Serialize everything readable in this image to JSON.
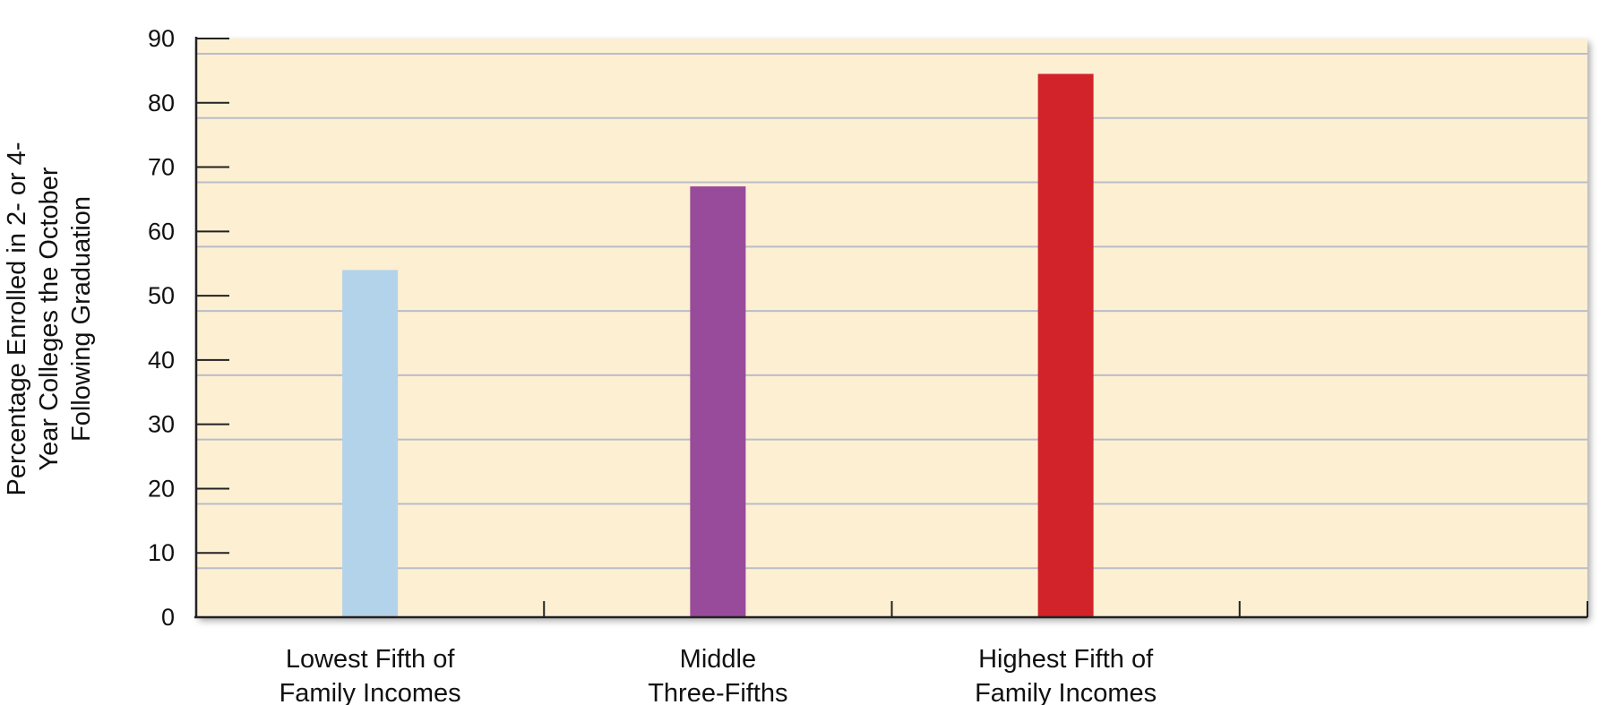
{
  "chart_data": {
    "type": "bar",
    "categories": [
      [
        "Lowest Fifth of",
        "Family Incomes"
      ],
      [
        "Middle",
        "Three-Fifths"
      ],
      [
        "Highest Fifth of",
        "Family Incomes"
      ],
      []
    ],
    "values": [
      54,
      67,
      84.5,
      null
    ],
    "title": "",
    "xlabel": "",
    "ylabel": [
      "Percentage Enrolled in 2- or 4-",
      "Year Colleges the October",
      "Following Graduation"
    ],
    "ylim": [
      0,
      90
    ],
    "yticks": [
      0,
      10,
      20,
      30,
      40,
      50,
      60,
      70,
      80,
      90
    ],
    "grid": true,
    "colors": {
      "plot_background": "#fdefd2",
      "gridline": "#b9bdca",
      "axis": "#222222",
      "bars": [
        "#b3d3ea",
        "#974b9a",
        "#d2232a"
      ]
    }
  }
}
